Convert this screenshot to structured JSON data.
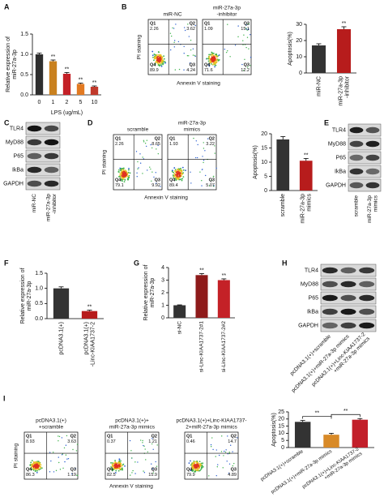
{
  "panel_labels": [
    "A",
    "B",
    "C",
    "D",
    "E",
    "F",
    "G",
    "H",
    "I"
  ],
  "chart_data": [
    {
      "type": "bar",
      "ylabel": [
        "Relative expression of",
        "miR-27a-3p"
      ],
      "xlabel": "LPS (ug/mL)",
      "categories": [
        "0",
        "1",
        "2",
        "5",
        "10"
      ],
      "values": [
        1.0,
        0.83,
        0.52,
        0.27,
        0.2
      ],
      "errors": [
        0.03,
        0.03,
        0.03,
        0.02,
        0.02
      ],
      "colors": [
        "#2e2e2e",
        "#c9811f",
        "#c42127",
        "#e27a22",
        "#c0392b"
      ],
      "annotations": [
        null,
        "**",
        "**",
        "**",
        "**"
      ],
      "ylim": [
        0,
        1.5
      ],
      "yticks": [
        {
          "value": 0,
          "label": "0.0"
        },
        0.5,
        {
          "value": 1,
          "label": "1.0"
        },
        1.5
      ]
    },
    {
      "type": "bar",
      "ylabel": "Apoptosis(%)",
      "categories": [
        "miR-NC",
        [
          "miR-27a-3p",
          "-inhibitor"
        ]
      ],
      "values": [
        17,
        27
      ],
      "errors": [
        1,
        1.5
      ],
      "colors": [
        "#333333",
        "#b71c1c"
      ],
      "annotations": [
        null,
        "**"
      ],
      "ylim": [
        0,
        30
      ],
      "yticks": [
        0,
        10,
        20,
        30
      ]
    },
    {
      "type": "bar",
      "ylabel": "Apoptosis(%)",
      "categories": [
        "scramble",
        [
          "miR-27a-3p",
          "mimics"
        ]
      ],
      "values": [
        18,
        10.5
      ],
      "errors": [
        1,
        0.8
      ],
      "colors": [
        "#333333",
        "#b71c1c"
      ],
      "annotations": [
        null,
        "**"
      ],
      "ylim": [
        0,
        20
      ],
      "yticks": [
        0,
        5,
        10,
        15,
        20
      ]
    },
    {
      "type": "bar",
      "ylabel": [
        "Relative expression of",
        "miR-27a-3p"
      ],
      "categories": [
        "pcDNA3.1(+)",
        [
          "pcDNA3.1(+)",
          "-Linc-KIAA1737-2"
        ]
      ],
      "values": [
        1,
        0.25
      ],
      "errors": [
        0.05,
        0.03
      ],
      "colors": [
        "#333333",
        "#b71c1c"
      ],
      "annotations": [
        null,
        "**"
      ],
      "ylim": [
        0,
        1.5
      ],
      "yticks": [
        {
          "value": 0,
          "label": "0.0"
        },
        0.5,
        {
          "value": 1,
          "label": "1.0"
        },
        1.5
      ]
    },
    {
      "type": "bar",
      "ylabel": [
        "Relative expression of",
        "miR-27a-3p"
      ],
      "categories": [
        "si-NC",
        "si-Linc-KIAA1737-2#1",
        "si-Linc-KIAA1737-2#2"
      ],
      "values": [
        1,
        3.4,
        3.0
      ],
      "errors": [
        0.03,
        0.12,
        0.1
      ],
      "colors": [
        "#333333",
        "#8e1b1b",
        "#c42127"
      ],
      "annotations": [
        null,
        "**",
        "**"
      ],
      "ylim": [
        0,
        4
      ],
      "yticks": [
        0,
        1,
        2,
        3,
        4
      ]
    },
    {
      "type": "bar",
      "ylabel": "Apoptosis(%)",
      "categories": [
        "pcDNA3.1(+)+scramble",
        "pcDNA3.1(+)+miR-27a-3p mimics",
        [
          "pcDNA3.1(+)+Linc-KIAA1737-2",
          "+miR-27a-3p mimics"
        ]
      ],
      "values": [
        18,
        9,
        19.5
      ],
      "errors": [
        1,
        1,
        0.8
      ],
      "colors": [
        "#333333",
        "#d88a28",
        "#c21f2a"
      ],
      "brackets": [
        "**",
        "**"
      ],
      "ylim": [
        0,
        25
      ],
      "yticks": [
        0,
        5,
        10,
        15,
        20,
        25
      ]
    }
  ],
  "flow": [
    {
      "ylabel": "PI staining",
      "xlabel": "Annexin V staining",
      "plots": [
        {
          "title": [
            "miR-NC"
          ],
          "quadrants": [
            {
              "name": "Q1",
              "value": 2.26
            },
            {
              "name": "Q2",
              "value": 3.62
            },
            {
              "name": "Q4",
              "value": 89.9
            },
            {
              "name": "Q3",
              "value": 4.24
            }
          ]
        },
        {
          "title": [
            "miR-27a-3p",
            "-inhibitor"
          ],
          "quadrants": [
            {
              "name": "Q1",
              "value": 1.09
            },
            {
              "name": "Q2",
              "value": 15.1
            },
            {
              "name": "Q4",
              "value": 71.6
            },
            {
              "name": "Q3",
              "value": 12.2
            }
          ]
        }
      ]
    },
    {
      "ylabel": "PI staining",
      "xlabel": "Annexin V staining",
      "plots": [
        {
          "title": [
            "scramble"
          ],
          "quadrants": [
            {
              "name": "Q1",
              "value": 2.26
            },
            {
              "name": "Q2",
              "value": 8.65
            },
            {
              "name": "Q4",
              "value": 79.1
            },
            {
              "name": "Q3",
              "value": 9.92
            }
          ]
        },
        {
          "title": [
            "miR-27a-3p",
            "mimics"
          ],
          "quadrants": [
            {
              "name": "Q1",
              "value": 1.93
            },
            {
              "name": "Q2",
              "value": 3.22
            },
            {
              "name": "Q4",
              "value": 89.4
            },
            {
              "name": "Q3",
              "value": 5.07
            }
          ]
        }
      ]
    },
    {
      "ylabel": "PI staining",
      "xlabel": "Annexin V staining",
      "plots": [
        {
          "title": [
            "pcDNA3.1(+)",
            "+scramble"
          ],
          "quadrants": [
            {
              "name": "Q1",
              "value": 8.93
            },
            {
              "name": "Q2",
              "value": 3.63
            },
            {
              "name": "Q4",
              "value": 86.3
            },
            {
              "name": "Q3",
              "value": 1.19
            }
          ]
        },
        {
          "title": [
            "pcDNA3.1(+)+",
            "miR-27a-3p mimics"
          ],
          "quadrants": [
            {
              "name": "Q1",
              "value": 0.37
            },
            {
              "name": "Q2",
              "value": 1.21
            },
            {
              "name": "Q4",
              "value": 82.5
            },
            {
              "name": "Q3",
              "value": 15.9
            }
          ]
        },
        {
          "title": [
            "pcDNA3.1(+)+Linc-KIAA1737-",
            "2+miR-27a-3p mimics"
          ],
          "quadrants": [
            {
              "name": "Q1",
              "value": 0.46
            },
            {
              "name": "Q2",
              "value": 14.7
            },
            {
              "name": "Q4",
              "value": 79.9
            },
            {
              "name": "Q3",
              "value": 4.89
            }
          ]
        }
      ]
    }
  ],
  "blots": [
    {
      "proteins": [
        "TLR4",
        "MyD88",
        "P65",
        "IkBa",
        "GAPDH"
      ],
      "lanes": [
        "miR-NC",
        [
          "miR-27a-3p",
          "-inhibitor"
        ]
      ]
    },
    {
      "proteins": [
        "TLR4",
        "MyD88",
        "P65",
        "IkBa",
        "GAPDH"
      ],
      "lanes": [
        "scramble",
        [
          "miR-27a-3p",
          "mimics"
        ]
      ]
    },
    {
      "proteins": [
        "TLR4",
        "MyD88",
        "P65",
        "IkBa",
        "GAPDH"
      ],
      "lanes": [
        "pcDNA3.1(+)+scramble",
        "pcDNA3.1(+)+miR-27a-3p mimics",
        [
          "pcDNA3.1(+)+Linc-KIAA1737-2",
          "+miR-27a-3p mimics"
        ]
      ]
    }
  ]
}
